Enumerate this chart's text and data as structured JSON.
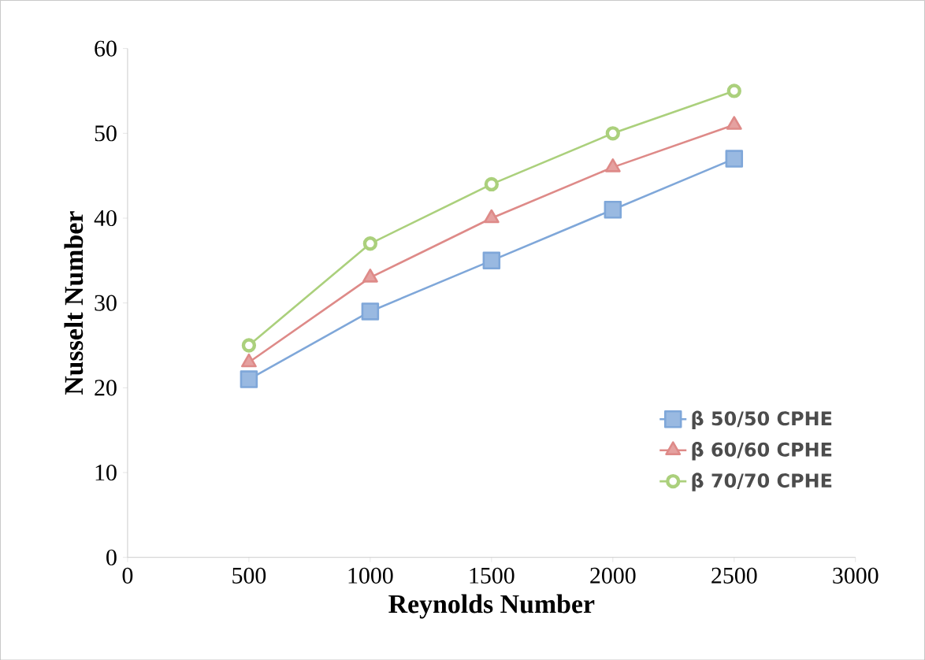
{
  "chart_data": {
    "type": "line",
    "xlabel": "Reynolds Number",
    "ylabel": "Nusselt Number",
    "x": [
      500,
      1000,
      1500,
      2000,
      2500
    ],
    "series": [
      {
        "name": "β 50/50 CPHE",
        "color": "#7fa7d9",
        "marker": "square",
        "values": [
          21,
          29,
          35,
          41,
          47
        ]
      },
      {
        "name": "β 60/60 CPHE",
        "color": "#de8a88",
        "marker": "triangle",
        "values": [
          23,
          33,
          40,
          46,
          51
        ]
      },
      {
        "name": "β 70/70 CPHE",
        "color": "#abd07c",
        "marker": "circle",
        "values": [
          25,
          37,
          44,
          50,
          55
        ]
      }
    ],
    "xlim": [
      0,
      3000
    ],
    "xticks": [
      0,
      500,
      1000,
      1500,
      2000,
      2500,
      3000
    ],
    "ylim": [
      0,
      60
    ],
    "yticks": [
      0,
      10,
      20,
      30,
      40,
      50,
      60
    ],
    "grid": false,
    "legend": "bottom right",
    "line_style": "solid"
  }
}
